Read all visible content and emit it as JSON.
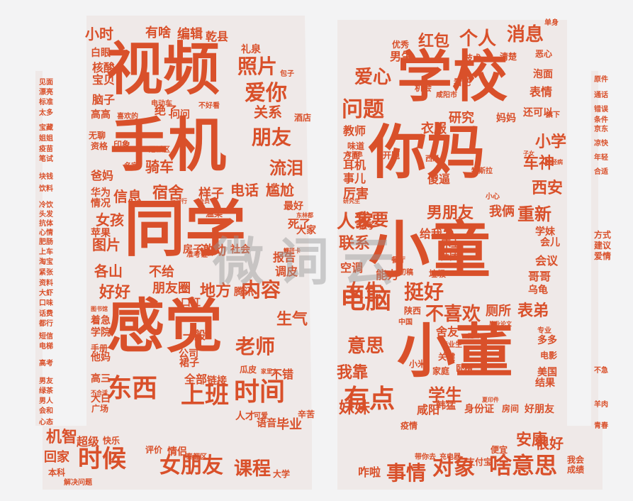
{
  "words": [
    {
      "text": "视频",
      "size": 80
    },
    {
      "text": "手机",
      "size": 82
    },
    {
      "text": "同学",
      "size": 86
    },
    {
      "text": "感觉",
      "size": 82
    },
    {
      "text": "学校",
      "size": 78
    },
    {
      "text": "你妈",
      "size": 82
    },
    {
      "text": "小童",
      "size": 86
    },
    {
      "text": "小董",
      "size": 82
    },
    {
      "text": "东西",
      "size": 36
    },
    {
      "text": "时间",
      "size": 36
    },
    {
      "text": "上班",
      "size": 34
    },
    {
      "text": "时候",
      "size": 34
    },
    {
      "text": "女朋友",
      "size": 30
    },
    {
      "text": "课程",
      "size": 26
    },
    {
      "text": "有点",
      "size": 36
    },
    {
      "text": "电脑",
      "size": 36
    },
    {
      "text": "事情",
      "size": 28
    },
    {
      "text": "对象",
      "size": 30
    },
    {
      "text": "啥意思",
      "size": 32
    },
    {
      "text": "照片",
      "size": 28
    },
    {
      "text": "爱你",
      "size": 30
    },
    {
      "text": "朋友",
      "size": 28
    },
    {
      "text": "流泪",
      "size": 24
    },
    {
      "text": "问题",
      "size": 30
    },
    {
      "text": "爱心",
      "size": 26
    },
    {
      "text": "个人",
      "size": 26
    },
    {
      "text": "消息",
      "size": 26
    },
    {
      "text": "红包",
      "size": 22
    },
    {
      "text": "内容",
      "size": 28
    },
    {
      "text": "老师",
      "size": 28
    },
    {
      "text": "生气",
      "size": 22
    },
    {
      "text": "挺好",
      "size": 28
    },
    {
      "text": "女生",
      "size": 26
    },
    {
      "text": "不喜欢",
      "size": 26
    },
    {
      "text": "表弟",
      "size": 22
    },
    {
      "text": "重新",
      "size": 24
    },
    {
      "text": "车神",
      "size": 22
    },
    {
      "text": "西安",
      "size": 22
    },
    {
      "text": "小学",
      "size": 22
    },
    {
      "text": "学生",
      "size": 24
    },
    {
      "text": "意思",
      "size": 26
    },
    {
      "text": "我靠",
      "size": 22
    },
    {
      "text": "妹妹",
      "size": 22
    },
    {
      "text": "人家",
      "size": 26
    },
    {
      "text": "联系",
      "size": 22
    },
    {
      "text": "男朋友",
      "size": 22
    },
    {
      "text": "我俩",
      "size": 18
    },
    {
      "text": "我要",
      "size": 24
    },
    {
      "text": "安康",
      "size": 22
    },
    {
      "text": "很好",
      "size": 20
    },
    {
      "text": "机智",
      "size": 22
    },
    {
      "text": "回家",
      "size": 18
    },
    {
      "text": "女孩",
      "size": 20
    },
    {
      "text": "图片",
      "size": 20
    },
    {
      "text": "各山",
      "size": 20
    },
    {
      "text": "好好",
      "size": 22
    },
    {
      "text": "地方",
      "size": 22
    },
    {
      "text": "不给",
      "size": 18
    },
    {
      "text": "信息",
      "size": 20
    },
    {
      "text": "宿舍",
      "size": 22
    },
    {
      "text": "骑车",
      "size": 20
    },
    {
      "text": "电话",
      "size": 20
    },
    {
      "text": "尴尬",
      "size": 20
    },
    {
      "text": "样子",
      "size": 18
    },
    {
      "text": "关系",
      "size": 20
    },
    {
      "text": "小时",
      "size": 20
    },
    {
      "text": "有啥",
      "size": 18
    },
    {
      "text": "编辑",
      "size": 18
    },
    {
      "text": "乾县",
      "size": 16
    },
    {
      "text": "礼泉",
      "size": 14
    },
    {
      "text": "男生",
      "size": 16
    },
    {
      "text": "技术",
      "size": 12
    },
    {
      "text": "清楚",
      "size": 12
    },
    {
      "text": "恶心",
      "size": 12
    },
    {
      "text": "泡面",
      "size": 14
    },
    {
      "text": "表情",
      "size": 16
    },
    {
      "text": "研究",
      "size": 18
    },
    {
      "text": "衣服",
      "size": 18
    },
    {
      "text": "教师",
      "size": 16
    },
    {
      "text": "耳机",
      "size": 16
    },
    {
      "text": "厉害",
      "size": 18
    },
    {
      "text": "事儿",
      "size": 16
    },
    {
      "text": "妈妈",
      "size": 14
    },
    {
      "text": "还可以",
      "size": 14
    },
    {
      "text": "旗下",
      "size": 10
    },
    {
      "text": "优秀",
      "size": 12
    },
    {
      "text": "看吧",
      "size": 12
    },
    {
      "text": "机会",
      "size": 12
    },
    {
      "text": "咸阳市",
      "size": 10
    },
    {
      "text": "西瓜",
      "size": 10
    },
    {
      "text": "特斯拉",
      "size": 10
    },
    {
      "text": "傻逼",
      "size": 16
    },
    {
      "text": "小心",
      "size": 10
    },
    {
      "text": "学妹",
      "size": 14
    },
    {
      "text": "会儿",
      "size": 14
    },
    {
      "text": "会议",
      "size": 16
    },
    {
      "text": "哥哥",
      "size": 16
    },
    {
      "text": "乌龟",
      "size": 14
    },
    {
      "text": "厕所",
      "size": 18
    },
    {
      "text": "舍友",
      "size": 16
    },
    {
      "text": "毕业",
      "size": 18
    },
    {
      "text": "语音",
      "size": 14
    },
    {
      "text": "辛苦",
      "size": 12
    },
    {
      "text": "人才",
      "size": 14
    },
    {
      "text": "不错",
      "size": 16
    },
    {
      "text": "链接",
      "size": 14
    },
    {
      "text": "全部",
      "size": 16
    },
    {
      "text": "瓜皮",
      "size": 12
    },
    {
      "text": "一般",
      "size": 16
    },
    {
      "text": "公司",
      "size": 14
    },
    {
      "text": "裙子",
      "size": 14
    },
    {
      "text": "手册",
      "size": 12
    },
    {
      "text": "他妈",
      "size": 14
    },
    {
      "text": "着急",
      "size": 14
    },
    {
      "text": "学院",
      "size": 14
    },
    {
      "text": "高三",
      "size": 14
    },
    {
      "text": "大白",
      "size": 14
    },
    {
      "text": "广场",
      "size": 12
    },
    {
      "text": "超级",
      "size": 16
    },
    {
      "text": "快乐",
      "size": 12
    },
    {
      "text": "评价",
      "size": 12
    },
    {
      "text": "情侣",
      "size": 14
    },
    {
      "text": "泰都区",
      "size": 10
    },
    {
      "text": "大学",
      "size": 12
    },
    {
      "text": "本科",
      "size": 12
    },
    {
      "text": "解决问题",
      "size": 10
    },
    {
      "text": "咋啦",
      "size": 16
    },
    {
      "text": "带你去",
      "size": 10
    },
    {
      "text": "充电器",
      "size": 10
    },
    {
      "text": "支付宝",
      "size": 12
    },
    {
      "text": "便宜",
      "size": 12
    },
    {
      "text": "我会",
      "size": 12
    },
    {
      "text": "成绩",
      "size": 12
    },
    {
      "text": "身份证",
      "size": 14
    },
    {
      "text": "房间",
      "size": 12
    },
    {
      "text": "好朋友",
      "size": 14
    },
    {
      "text": "咸阳",
      "size": 16
    },
    {
      "text": "韩猛",
      "size": 14
    },
    {
      "text": "疫情",
      "size": 12
    },
    {
      "text": "宝贝",
      "size": 16
    },
    {
      "text": "脑子",
      "size": 16
    },
    {
      "text": "核酸",
      "size": 16
    },
    {
      "text": "白眼",
      "size": 14
    },
    {
      "text": "高高",
      "size": 14
    },
    {
      "text": "问问",
      "size": 14
    },
    {
      "text": "绝了",
      "size": 16
    },
    {
      "text": "喜欢的",
      "size": 10
    },
    {
      "text": "无聊",
      "size": 12
    },
    {
      "text": "资格",
      "size": 12
    },
    {
      "text": "印象",
      "size": 12
    },
    {
      "text": "冠派区",
      "size": 10
    },
    {
      "text": "爸妈",
      "size": 16
    },
    {
      "text": "华为",
      "size": 14
    },
    {
      "text": "情况",
      "size": 14
    },
    {
      "text": "苹果",
      "size": 14
    },
    {
      "text": "房子",
      "size": 14
    },
    {
      "text": "激动",
      "size": 18
    },
    {
      "text": "社会",
      "size": 14
    },
    {
      "text": "报告",
      "size": 16
    },
    {
      "text": "调皮",
      "size": 16
    },
    {
      "text": "朋友圈",
      "size": 18
    },
    {
      "text": "腾讯",
      "size": 14
    },
    {
      "text": "口红",
      "size": 14
    },
    {
      "text": "方式",
      "size": 12
    },
    {
      "text": "建议",
      "size": 12
    },
    {
      "text": "爱情",
      "size": 12
    },
    {
      "text": "原件",
      "size": 10
    },
    {
      "text": "通话",
      "size": 10
    },
    {
      "text": "错误",
      "size": 10
    },
    {
      "text": "条件",
      "size": 10
    },
    {
      "text": "京东",
      "size": 10
    },
    {
      "text": "凉快",
      "size": 10
    },
    {
      "text": "年轻",
      "size": 10
    },
    {
      "text": "合适",
      "size": 10
    },
    {
      "text": "不急",
      "size": 10
    },
    {
      "text": "羊肉",
      "size": 10
    },
    {
      "text": "青春",
      "size": 10
    },
    {
      "text": "见面",
      "size": 10
    },
    {
      "text": "漂亮",
      "size": 10
    },
    {
      "text": "标准",
      "size": 10
    },
    {
      "text": "太多",
      "size": 10
    },
    {
      "text": "宝藏",
      "size": 10
    },
    {
      "text": "姐姐",
      "size": 10
    },
    {
      "text": "疫苗",
      "size": 10
    },
    {
      "text": "笔试",
      "size": 10
    },
    {
      "text": "块钱",
      "size": 10
    },
    {
      "text": "饮料",
      "size": 10
    },
    {
      "text": "冷饮",
      "size": 10
    },
    {
      "text": "头发",
      "size": 10
    },
    {
      "text": "抗体",
      "size": 10
    },
    {
      "text": "心情",
      "size": 10
    },
    {
      "text": "肥肠",
      "size": 10
    },
    {
      "text": "上车",
      "size": 10
    },
    {
      "text": "淘宝",
      "size": 10
    },
    {
      "text": "紧张",
      "size": 10
    },
    {
      "text": "资料",
      "size": 10
    },
    {
      "text": "大虾",
      "size": 10
    },
    {
      "text": "口味",
      "size": 10
    },
    {
      "text": "话费",
      "size": 10
    },
    {
      "text": "都行",
      "size": 10
    },
    {
      "text": "短信",
      "size": 10
    },
    {
      "text": "电梯",
      "size": 10
    },
    {
      "text": "高考",
      "size": 10
    },
    {
      "text": "男友",
      "size": 10
    },
    {
      "text": "绿茶",
      "size": 10
    },
    {
      "text": "男人",
      "size": 10
    },
    {
      "text": "会和",
      "size": 10
    },
    {
      "text": "心态",
      "size": 10
    },
    {
      "text": "单身",
      "size": 10
    },
    {
      "text": "电影",
      "size": 12
    },
    {
      "text": "美国",
      "size": 14
    },
    {
      "text": "结果",
      "size": 14
    },
    {
      "text": "多多",
      "size": 14
    },
    {
      "text": "专业",
      "size": 10
    },
    {
      "text": "小米",
      "size": 12
    },
    {
      "text": "家庭",
      "size": 12
    },
    {
      "text": "卧槽",
      "size": 12
    },
    {
      "text": "关键",
      "size": 12
    },
    {
      "text": "毕业生",
      "size": 10
    },
    {
      "text": "陕西",
      "size": 12
    },
    {
      "text": "中国",
      "size": 10
    },
    {
      "text": "餐厅",
      "size": 10
    },
    {
      "text": "初稿",
      "size": 10
    },
    {
      "text": "垃圾",
      "size": 12
    },
    {
      "text": "社团",
      "size": 14
    },
    {
      "text": "床上",
      "size": 14
    },
    {
      "text": "空调",
      "size": 16
    },
    {
      "text": "能力",
      "size": 16
    },
    {
      "text": "给我发",
      "size": 16
    },
    {
      "text": "孩子",
      "size": 12
    },
    {
      "text": "大家",
      "size": 14
    },
    {
      "text": "死了",
      "size": 16
    },
    {
      "text": "最好",
      "size": 14
    },
    {
      "text": "温柔",
      "size": 12
    },
    {
      "text": "方面",
      "size": 12
    },
    {
      "text": "开题",
      "size": 12
    },
    {
      "text": "味道",
      "size": 12
    },
    {
      "text": "电动车",
      "size": 10
    },
    {
      "text": "不好看",
      "size": 10
    },
    {
      "text": "包子",
      "size": 10
    },
    {
      "text": "酒店",
      "size": 12
    },
    {
      "text": "行行行",
      "size": 8
    },
    {
      "text": "会员",
      "size": 8
    },
    {
      "text": "名字",
      "size": 10
    },
    {
      "text": "准考证",
      "size": 10
    },
    {
      "text": "图书馆",
      "size": 8
    },
    {
      "text": "不合适",
      "size": 8
    },
    {
      "text": "可爱",
      "size": 10
    },
    {
      "text": "家里人",
      "size": 8
    },
    {
      "text": "子女",
      "size": 8
    },
    {
      "text": "神经病",
      "size": 8
    },
    {
      "text": "东林都",
      "size": 8
    },
    {
      "text": "研究生",
      "size": 8
    },
    {
      "text": "发消息",
      "size": 8
    },
    {
      "text": "毕业论文",
      "size": 8
    },
    {
      "text": "更新",
      "size": 8
    },
    {
      "text": "夏印件",
      "size": 8
    },
    {
      "text": "银行卡",
      "size": 8
    },
    {
      "text": "好了",
      "size": 8
    }
  ],
  "watermark": "微词云"
}
